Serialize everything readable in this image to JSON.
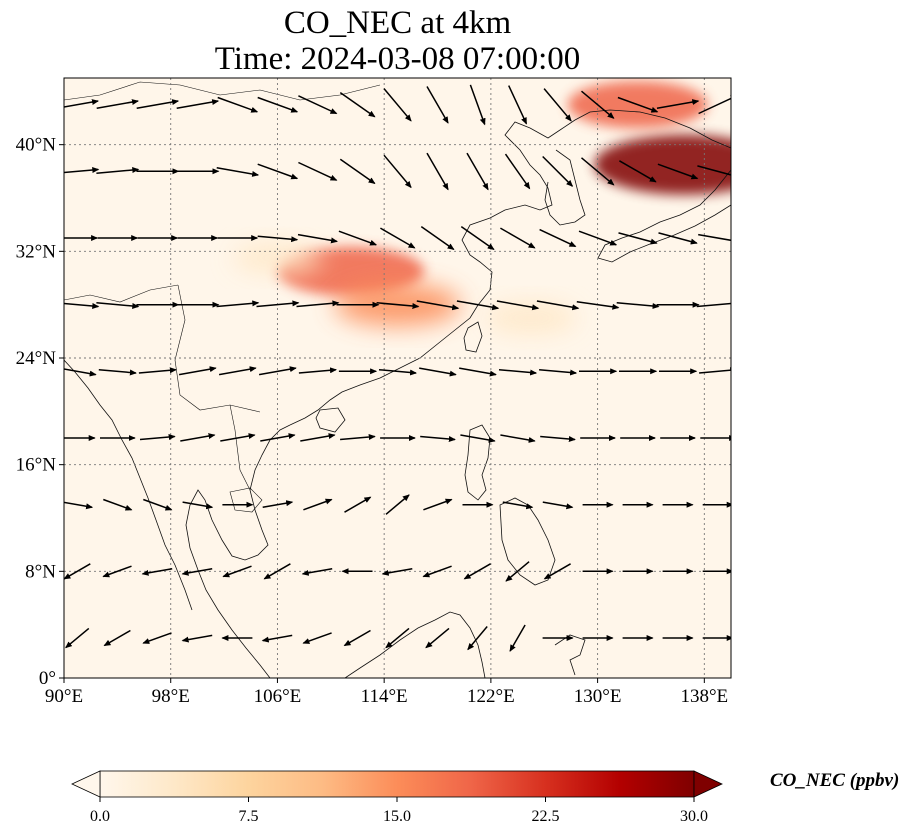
{
  "chart_data": {
    "type": "map",
    "title_line1": "CO_NEC at 4km",
    "title_line2": "Time: 2024-03-08 07:00:00",
    "variable": "CO_NEC",
    "level": "4km",
    "time": "2024-03-08 07:00:00",
    "lon_range": [
      90,
      140
    ],
    "lat_range": [
      0,
      45
    ],
    "lon_ticks": [
      "90°E",
      "98°E",
      "106°E",
      "114°E",
      "122°E",
      "130°E",
      "138°E"
    ],
    "lon_tick_values": [
      90,
      98,
      106,
      114,
      122,
      130,
      138
    ],
    "lat_ticks": [
      "0°",
      "8°N",
      "16°N",
      "24°N",
      "32°N",
      "40°N"
    ],
    "lat_tick_values": [
      0,
      8,
      16,
      24,
      32,
      40
    ],
    "gridlines": true,
    "colormap": "OrRd",
    "colorbar": {
      "label": "CO_NEC (ppbv)",
      "min": 0.0,
      "max": 30.0,
      "ticks": [
        "0.0",
        "7.5",
        "15.0",
        "22.5",
        "30.0"
      ],
      "tick_values": [
        0.0,
        7.5,
        15.0,
        22.5,
        30.0
      ],
      "extend": "both",
      "orientation": "horizontal"
    },
    "concentration_features": [
      {
        "name": "northeast-plume",
        "lon": 136.5,
        "lat": 38.5,
        "value": 30
      },
      {
        "name": "northeast-plume-arm",
        "lon": 133,
        "lat": 43,
        "value": 18
      },
      {
        "name": "south-china-plume-west",
        "lon": 111.5,
        "lat": 30.5,
        "value": 20
      },
      {
        "name": "south-china-plume-east",
        "lon": 115,
        "lat": 28,
        "value": 14
      },
      {
        "name": "east-china-sea-band",
        "lon": 125,
        "lat": 27,
        "value": 4
      },
      {
        "name": "sichuan-patch",
        "lon": 106,
        "lat": 31.5,
        "value": 3
      }
    ],
    "wind_field": {
      "description": "quiver",
      "rows": [
        {
          "lat": 43,
          "lon_start": 91,
          "lon_step": 3,
          "dir_deg": [
            10,
            10,
            10,
            10,
            -20,
            -20,
            -25,
            -35,
            -50,
            -60,
            -70,
            -65,
            -50,
            -40,
            -20,
            10,
            25
          ]
        },
        {
          "lat": 38,
          "lon_start": 91,
          "lon_step": 3,
          "dir_deg": [
            5,
            5,
            0,
            0,
            -10,
            -20,
            -25,
            -35,
            -50,
            -60,
            -60,
            -55,
            -45,
            -40,
            -30,
            -20,
            -15
          ]
        },
        {
          "lat": 33,
          "lon_start": 91,
          "lon_step": 3,
          "dir_deg": [
            0,
            0,
            0,
            0,
            0,
            -5,
            -10,
            -20,
            -30,
            -35,
            -35,
            -30,
            -25,
            -20,
            -15,
            -15,
            -10
          ]
        },
        {
          "lat": 28,
          "lon_start": 91,
          "lon_step": 3,
          "dir_deg": [
            -5,
            -5,
            0,
            0,
            5,
            5,
            5,
            0,
            -5,
            -10,
            -10,
            -10,
            -10,
            -8,
            -5,
            0,
            5
          ]
        },
        {
          "lat": 23,
          "lon_start": 91,
          "lon_step": 3,
          "dir_deg": [
            -10,
            -5,
            5,
            10,
            10,
            10,
            5,
            0,
            -5,
            -10,
            -10,
            -5,
            -5,
            0,
            0,
            0,
            5
          ]
        },
        {
          "lat": 18,
          "lon_start": 91,
          "lon_step": 3,
          "dir_deg": [
            0,
            0,
            5,
            10,
            10,
            10,
            10,
            5,
            0,
            -5,
            -10,
            -10,
            -5,
            0,
            0,
            0,
            0
          ]
        },
        {
          "lat": 13,
          "lon_start": 91,
          "lon_step": 3,
          "dir_deg": [
            -10,
            -20,
            -20,
            -10,
            0,
            10,
            20,
            30,
            40,
            20,
            0,
            -10,
            -10,
            0,
            0,
            0,
            0
          ]
        },
        {
          "lat": 8,
          "lon_start": 91,
          "lon_step": 3,
          "dir_deg": [
            -150,
            -160,
            -170,
            -170,
            -160,
            -150,
            -170,
            -180,
            -170,
            -160,
            -150,
            -140,
            -150,
            0,
            0,
            0,
            0
          ]
        },
        {
          "lat": 3,
          "lon_start": 91,
          "lon_step": 3,
          "dir_deg": [
            -140,
            -150,
            -160,
            -170,
            -180,
            -170,
            -160,
            -150,
            -140,
            -140,
            -130,
            -120,
            0,
            0,
            0,
            0,
            0
          ]
        }
      ],
      "speed_by_row": [
        1.0,
        1.0,
        0.9,
        1.0,
        0.8,
        0.7,
        0.5,
        0.5,
        0.5
      ]
    }
  }
}
